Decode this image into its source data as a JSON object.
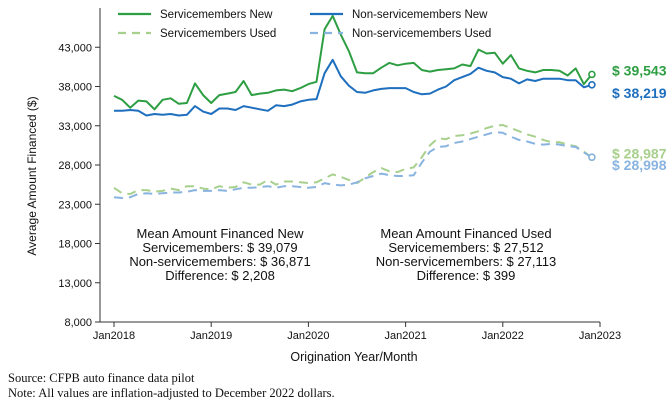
{
  "chart_data": {
    "type": "line",
    "title": "",
    "xlabel": "Origination Year/Month",
    "ylabel": "Average Amount Financed ($)",
    "ylim": [
      8000,
      48000
    ],
    "xlim": [
      "2018-01",
      "2023-01"
    ],
    "yticks": [
      8000,
      13000,
      18000,
      23000,
      28000,
      33000,
      38000,
      43000
    ],
    "ytick_labels": [
      "8,000",
      "13,000",
      "18,000",
      "23,000",
      "28,000",
      "33,000",
      "38,000",
      "43,000"
    ],
    "xticks": [
      "2018-01",
      "2019-01",
      "2020-01",
      "2021-01",
      "2022-01",
      "2023-01"
    ],
    "xtick_labels": [
      "Jan2018",
      "Jan2019",
      "Jan2020",
      "Jan2021",
      "Jan2022",
      "Jan2023"
    ],
    "legend_position": "top",
    "series": [
      {
        "name": "Servicemembers New",
        "color": "#2e9e43",
        "dash": "solid",
        "end_label": "$  39,543",
        "x": [
          "2018-01",
          "2018-02",
          "2018-03",
          "2018-04",
          "2018-05",
          "2018-06",
          "2018-07",
          "2018-08",
          "2018-09",
          "2018-10",
          "2018-11",
          "2018-12",
          "2019-01",
          "2019-02",
          "2019-03",
          "2019-04",
          "2019-05",
          "2019-06",
          "2019-07",
          "2019-08",
          "2019-09",
          "2019-10",
          "2019-11",
          "2019-12",
          "2020-01",
          "2020-02",
          "2020-03",
          "2020-04",
          "2020-05",
          "2020-06",
          "2020-07",
          "2020-08",
          "2020-09",
          "2020-10",
          "2020-11",
          "2020-12",
          "2021-01",
          "2021-02",
          "2021-03",
          "2021-04",
          "2021-05",
          "2021-06",
          "2021-07",
          "2021-08",
          "2021-09",
          "2021-10",
          "2021-11",
          "2021-12",
          "2022-01",
          "2022-02",
          "2022-03",
          "2022-04",
          "2022-05",
          "2022-06",
          "2022-07",
          "2022-08",
          "2022-09",
          "2022-10",
          "2022-11",
          "2022-12"
        ],
        "values": [
          36800,
          36300,
          35300,
          36200,
          36100,
          35100,
          36300,
          36500,
          35800,
          35900,
          38400,
          36900,
          35900,
          36900,
          37100,
          37300,
          38700,
          36900,
          37100,
          37200,
          37500,
          37600,
          37400,
          37800,
          38300,
          38600,
          45300,
          47000,
          44600,
          42500,
          39800,
          39700,
          39700,
          40400,
          41000,
          40700,
          40900,
          41000,
          40100,
          39900,
          40100,
          40200,
          40300,
          40800,
          40600,
          42700,
          42200,
          42300,
          40900,
          42000,
          40300,
          40000,
          39800,
          40100,
          40100,
          40000,
          39400,
          40300,
          38300,
          39543
        ]
      },
      {
        "name": "Non-servicemembers New",
        "color": "#1f6fbf",
        "dash": "solid",
        "end_label": "$ 38,219",
        "x": [
          "2018-01",
          "2018-02",
          "2018-03",
          "2018-04",
          "2018-05",
          "2018-06",
          "2018-07",
          "2018-08",
          "2018-09",
          "2018-10",
          "2018-11",
          "2018-12",
          "2019-01",
          "2019-02",
          "2019-03",
          "2019-04",
          "2019-05",
          "2019-06",
          "2019-07",
          "2019-08",
          "2019-09",
          "2019-10",
          "2019-11",
          "2019-12",
          "2020-01",
          "2020-02",
          "2020-03",
          "2020-04",
          "2020-05",
          "2020-06",
          "2020-07",
          "2020-08",
          "2020-09",
          "2020-10",
          "2020-11",
          "2020-12",
          "2021-01",
          "2021-02",
          "2021-03",
          "2021-04",
          "2021-05",
          "2021-06",
          "2021-07",
          "2021-08",
          "2021-09",
          "2021-10",
          "2021-11",
          "2021-12",
          "2022-01",
          "2022-02",
          "2022-03",
          "2022-04",
          "2022-05",
          "2022-06",
          "2022-07",
          "2022-08",
          "2022-09",
          "2022-10",
          "2022-11",
          "2022-12"
        ],
        "values": [
          34900,
          34900,
          35000,
          34900,
          34300,
          34500,
          34400,
          34500,
          34300,
          34400,
          35500,
          34800,
          34500,
          35200,
          35200,
          35000,
          35500,
          35300,
          35100,
          34900,
          35600,
          35500,
          35700,
          36100,
          36300,
          36400,
          39700,
          41400,
          39300,
          38100,
          37300,
          37200,
          37500,
          37700,
          37800,
          37800,
          37800,
          37300,
          37000,
          37100,
          37600,
          38000,
          38800,
          39200,
          39600,
          40400,
          40000,
          39800,
          39200,
          39000,
          38400,
          38900,
          38700,
          39000,
          39000,
          39000,
          38800,
          38800,
          37900,
          38219
        ]
      },
      {
        "name": "Servicemembers Used",
        "color": "#a8d08d",
        "dash": "dashed",
        "end_label": "$  28,987",
        "x": [
          "2018-01",
          "2018-02",
          "2018-03",
          "2018-04",
          "2018-05",
          "2018-06",
          "2018-07",
          "2018-08",
          "2018-09",
          "2018-10",
          "2018-11",
          "2018-12",
          "2019-01",
          "2019-02",
          "2019-03",
          "2019-04",
          "2019-05",
          "2019-06",
          "2019-07",
          "2019-08",
          "2019-09",
          "2019-10",
          "2019-11",
          "2019-12",
          "2020-01",
          "2020-02",
          "2020-03",
          "2020-04",
          "2020-05",
          "2020-06",
          "2020-07",
          "2020-08",
          "2020-09",
          "2020-10",
          "2020-11",
          "2020-12",
          "2021-01",
          "2021-02",
          "2021-03",
          "2021-04",
          "2021-05",
          "2021-06",
          "2021-07",
          "2021-08",
          "2021-09",
          "2021-10",
          "2021-11",
          "2021-12",
          "2022-01",
          "2022-02",
          "2022-03",
          "2022-04",
          "2022-05",
          "2022-06",
          "2022-07",
          "2022-08",
          "2022-09",
          "2022-10",
          "2022-11",
          "2022-12"
        ],
        "values": [
          25100,
          24400,
          24300,
          24800,
          24800,
          24600,
          24700,
          25000,
          24800,
          25300,
          25300,
          25000,
          24900,
          25300,
          25100,
          25200,
          25800,
          25500,
          25500,
          26100,
          25500,
          25900,
          25900,
          25800,
          25700,
          25800,
          26300,
          26800,
          26500,
          26100,
          25700,
          26400,
          27100,
          27600,
          27200,
          27100,
          27500,
          27700,
          29000,
          30500,
          31400,
          31300,
          31700,
          31800,
          32000,
          32300,
          32700,
          33000,
          33100,
          32700,
          32300,
          31900,
          31600,
          31200,
          30900,
          30900,
          30600,
          30400,
          29700,
          28987
        ]
      },
      {
        "name": "Non-servicemembers Used",
        "color": "#8ab4e0",
        "dash": "dashed",
        "end_label": "$ 28,998",
        "x": [
          "2018-01",
          "2018-02",
          "2018-03",
          "2018-04",
          "2018-05",
          "2018-06",
          "2018-07",
          "2018-08",
          "2018-09",
          "2018-10",
          "2018-11",
          "2018-12",
          "2019-01",
          "2019-02",
          "2019-03",
          "2019-04",
          "2019-05",
          "2019-06",
          "2019-07",
          "2019-08",
          "2019-09",
          "2019-10",
          "2019-11",
          "2019-12",
          "2020-01",
          "2020-02",
          "2020-03",
          "2020-04",
          "2020-05",
          "2020-06",
          "2020-07",
          "2020-08",
          "2020-09",
          "2020-10",
          "2020-11",
          "2020-12",
          "2021-01",
          "2021-02",
          "2021-03",
          "2021-04",
          "2021-05",
          "2021-06",
          "2021-07",
          "2021-08",
          "2021-09",
          "2021-10",
          "2021-11",
          "2021-12",
          "2022-01",
          "2022-02",
          "2022-03",
          "2022-04",
          "2022-05",
          "2022-06",
          "2022-07",
          "2022-08",
          "2022-09",
          "2022-10",
          "2022-11",
          "2022-12"
        ],
        "values": [
          23900,
          23800,
          23900,
          24300,
          24400,
          24300,
          24400,
          24500,
          24500,
          24600,
          24800,
          24700,
          24700,
          24800,
          24700,
          24900,
          25100,
          25100,
          25200,
          25300,
          25100,
          25300,
          25300,
          25200,
          25100,
          25200,
          25700,
          25500,
          25400,
          25500,
          25800,
          26300,
          26600,
          26900,
          26700,
          26600,
          26600,
          26700,
          28300,
          29700,
          30300,
          30400,
          30800,
          31000,
          31300,
          31600,
          31900,
          32200,
          32100,
          31600,
          31200,
          31000,
          30700,
          30600,
          30700,
          30600,
          30400,
          30300,
          29600,
          28998
        ]
      }
    ],
    "annotations": {
      "new": {
        "title": "Mean Amount Financed New",
        "lines": [
          "Servicemembers: $  39,079",
          "Non-servicemembers: $  36,871",
          "Difference: $  2,208"
        ]
      },
      "used": {
        "title": "Mean Amount Financed Used",
        "lines": [
          "Servicemembers: $  27,512",
          "Non-servicemembers: $  27,113",
          "Difference: $ 399"
        ]
      }
    }
  },
  "notes": {
    "source": "Source: CFPB auto finance data pilot",
    "note": "Note: All values are inflation-adjusted to December 2022 dollars."
  }
}
